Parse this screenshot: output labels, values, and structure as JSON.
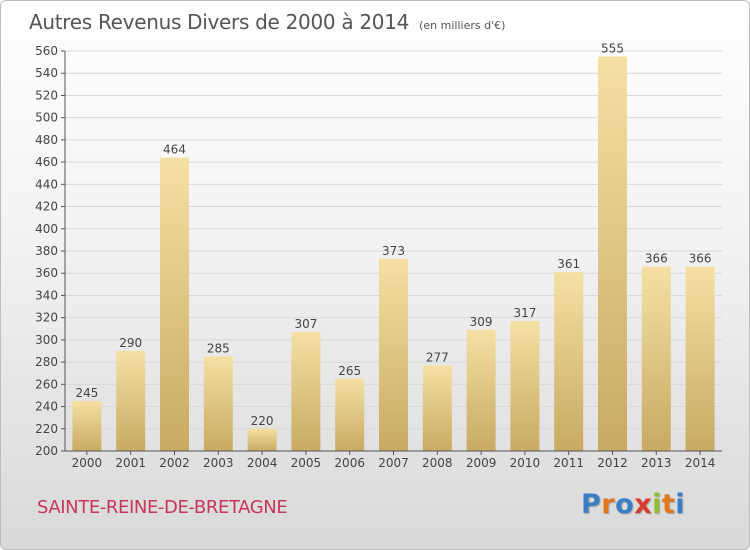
{
  "header": {
    "title": "Autres Revenus Divers de 2000 à 2014",
    "subtitle": "(en milliers d'€)"
  },
  "footer": {
    "commune": "SAINTE-REINE-DE-BRETAGNE",
    "logo": {
      "letters": [
        "P",
        "r",
        "o",
        "x",
        "i",
        "t",
        "i"
      ],
      "colors": [
        "#3a7fc4",
        "#e2761d",
        "#3a7fc4",
        "#d93a2f",
        "#8fbf2e",
        "#e2761d",
        "#3a7fc4"
      ]
    }
  },
  "colors": {
    "bar_light": "#f5e0a3",
    "bar_dark": "#c8aa62",
    "axis": "#555555",
    "grid": "#d8d8d8",
    "commune": "#c8365b"
  },
  "chart_data": {
    "type": "bar",
    "categories": [
      "2000",
      "2001",
      "2002",
      "2003",
      "2004",
      "2005",
      "2006",
      "2007",
      "2008",
      "2009",
      "2010",
      "2011",
      "2012",
      "2013",
      "2014"
    ],
    "values": [
      245,
      290,
      464,
      285,
      220,
      307,
      265,
      373,
      277,
      309,
      317,
      361,
      555,
      366,
      366
    ],
    "ylim": [
      200,
      560
    ],
    "yticks": [
      200,
      220,
      240,
      260,
      280,
      300,
      320,
      340,
      360,
      380,
      400,
      420,
      440,
      460,
      480,
      500,
      520,
      540,
      560
    ],
    "grid": true,
    "data_labels": true
  }
}
